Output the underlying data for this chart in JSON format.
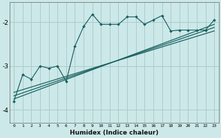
{
  "xlabel": "Humidex (Indice chaleur)",
  "ylabel": "",
  "background_color": "#cce8e8",
  "grid_color": "#aacccc",
  "line_color": "#1a6060",
  "xlim": [
    -0.5,
    23.5
  ],
  "ylim": [
    -4.3,
    -1.55
  ],
  "xticks": [
    0,
    1,
    2,
    3,
    4,
    5,
    6,
    7,
    8,
    9,
    10,
    11,
    12,
    13,
    14,
    15,
    16,
    17,
    18,
    19,
    20,
    21,
    22,
    23
  ],
  "yticks": [
    -4,
    -3,
    -2
  ],
  "series_main": {
    "x": [
      0,
      1,
      2,
      3,
      4,
      5,
      6,
      7,
      8,
      9,
      10,
      11,
      12,
      13,
      14,
      15,
      16,
      17,
      18,
      19,
      20,
      21,
      22,
      23
    ],
    "y": [
      -3.8,
      -3.2,
      -3.3,
      -3.0,
      -3.05,
      -3.0,
      -3.35,
      -2.55,
      -2.1,
      -1.82,
      -2.05,
      -2.05,
      -2.05,
      -1.88,
      -1.88,
      -2.05,
      -1.95,
      -1.85,
      -2.2,
      -2.18,
      -2.18,
      -2.18,
      -2.18,
      -1.95
    ]
  },
  "series_regression": [
    {
      "x0": 0,
      "y0": -3.75,
      "x1": 23,
      "y1": -2.05
    },
    {
      "x0": 0,
      "y0": -3.68,
      "x1": 23,
      "y1": -2.12
    },
    {
      "x0": 0,
      "y0": -3.6,
      "x1": 23,
      "y1": -2.2
    }
  ]
}
